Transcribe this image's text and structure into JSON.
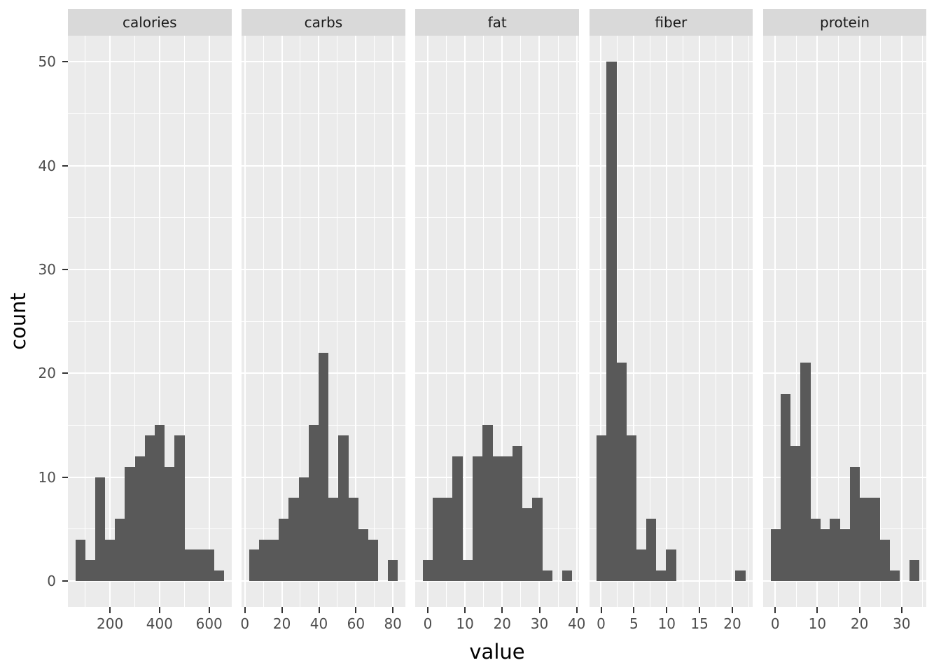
{
  "figure": {
    "background": "#FFFFFF",
    "panel_bg": "#EBEBEB",
    "strip_bg": "#D9D9D9",
    "bar_color": "#595959",
    "grid_color": "#FFFFFF",
    "tick_label_color": "#4D4D4D",
    "tick_mark_color": "#333333",
    "title_color": "#000000"
  },
  "chart_data": {
    "type": "bar",
    "subtype": "faceted-histogram",
    "title": "",
    "xlabel": "value",
    "ylabel": "count",
    "legend": "none",
    "grid": "on",
    "y_axis": {
      "range": [
        -2.5,
        52.5
      ],
      "ticks": [
        0,
        10,
        20,
        30,
        40,
        50
      ],
      "minor_ticks": [
        5,
        15,
        25,
        35,
        45
      ]
    },
    "facets": [
      {
        "label": "calories",
        "x_range": [
          30,
          690
        ],
        "bin_start": 60,
        "bin_width": 40,
        "counts": [
          4,
          2,
          10,
          4,
          6,
          11,
          12,
          14,
          15,
          11,
          14,
          3,
          3,
          3,
          1
        ],
        "x_ticks": [
          200,
          400,
          600
        ],
        "x_minor": [
          100,
          300,
          500
        ]
      },
      {
        "label": "carbs",
        "x_range": [
          -1.7,
          86.6
        ],
        "bin_start": 2.3,
        "bin_width": 5.35,
        "counts": [
          3,
          4,
          4,
          6,
          8,
          10,
          15,
          22,
          8,
          14,
          8,
          5,
          4,
          0,
          2
        ],
        "x_ticks": [
          0,
          20,
          40,
          60,
          80
        ],
        "x_minor": [
          10,
          30,
          50,
          70
        ]
      },
      {
        "label": "fat",
        "x_range": [
          -3.3,
          40.6
        ],
        "bin_start": -1.35,
        "bin_width": 2.67,
        "counts": [
          2,
          8,
          8,
          12,
          2,
          12,
          15,
          12,
          12,
          13,
          7,
          8,
          1,
          0,
          1
        ],
        "x_ticks": [
          0,
          10,
          20,
          30,
          40
        ],
        "x_minor": [
          5,
          15,
          25,
          35
        ]
      },
      {
        "label": "fiber",
        "x_range": [
          -1.8,
          23.1
        ],
        "bin_start": -0.67,
        "bin_width": 1.51,
        "counts": [
          14,
          50,
          21,
          14,
          3,
          6,
          1,
          3,
          0,
          0,
          0,
          0,
          0,
          0,
          1
        ],
        "x_ticks": [
          0,
          5,
          10,
          15,
          20
        ],
        "x_minor": [
          2.5,
          7.5,
          12.5,
          17.5,
          22.5
        ]
      },
      {
        "label": "protein",
        "x_range": [
          -2.9,
          35.9
        ],
        "bin_start": -1.1,
        "bin_width": 2.35,
        "counts": [
          5,
          18,
          13,
          21,
          6,
          5,
          6,
          5,
          11,
          8,
          8,
          4,
          1,
          0,
          2
        ],
        "x_ticks": [
          0,
          10,
          20,
          30
        ],
        "x_minor": [
          5,
          15,
          25,
          35
        ]
      }
    ]
  }
}
